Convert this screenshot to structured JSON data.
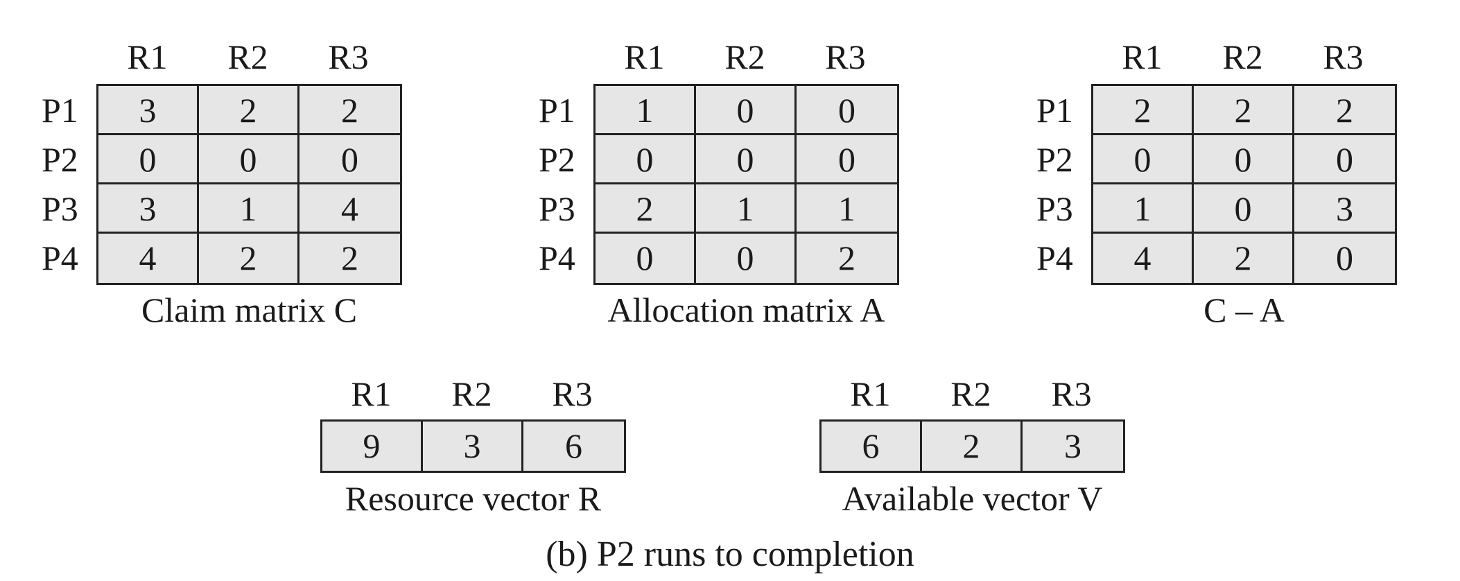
{
  "columns": [
    "R1",
    "R2",
    "R3"
  ],
  "rows": [
    "P1",
    "P2",
    "P3",
    "P4"
  ],
  "claim_matrix": {
    "caption": "Claim matrix C",
    "values": [
      [
        "3",
        "2",
        "2"
      ],
      [
        "0",
        "0",
        "0"
      ],
      [
        "3",
        "1",
        "4"
      ],
      [
        "4",
        "2",
        "2"
      ]
    ]
  },
  "allocation_matrix": {
    "caption": "Allocation matrix A",
    "values": [
      [
        "1",
        "0",
        "0"
      ],
      [
        "0",
        "0",
        "0"
      ],
      [
        "2",
        "1",
        "1"
      ],
      [
        "0",
        "0",
        "2"
      ]
    ]
  },
  "difference_matrix": {
    "caption": "C – A",
    "values": [
      [
        "2",
        "2",
        "2"
      ],
      [
        "0",
        "0",
        "0"
      ],
      [
        "1",
        "0",
        "3"
      ],
      [
        "4",
        "2",
        "0"
      ]
    ]
  },
  "resource_vector": {
    "caption": "Resource vector R",
    "values": [
      "9",
      "3",
      "6"
    ]
  },
  "available_vector": {
    "caption": "Available vector V",
    "values": [
      "6",
      "2",
      "3"
    ]
  },
  "figure_caption": "(b) P2 runs to completion"
}
